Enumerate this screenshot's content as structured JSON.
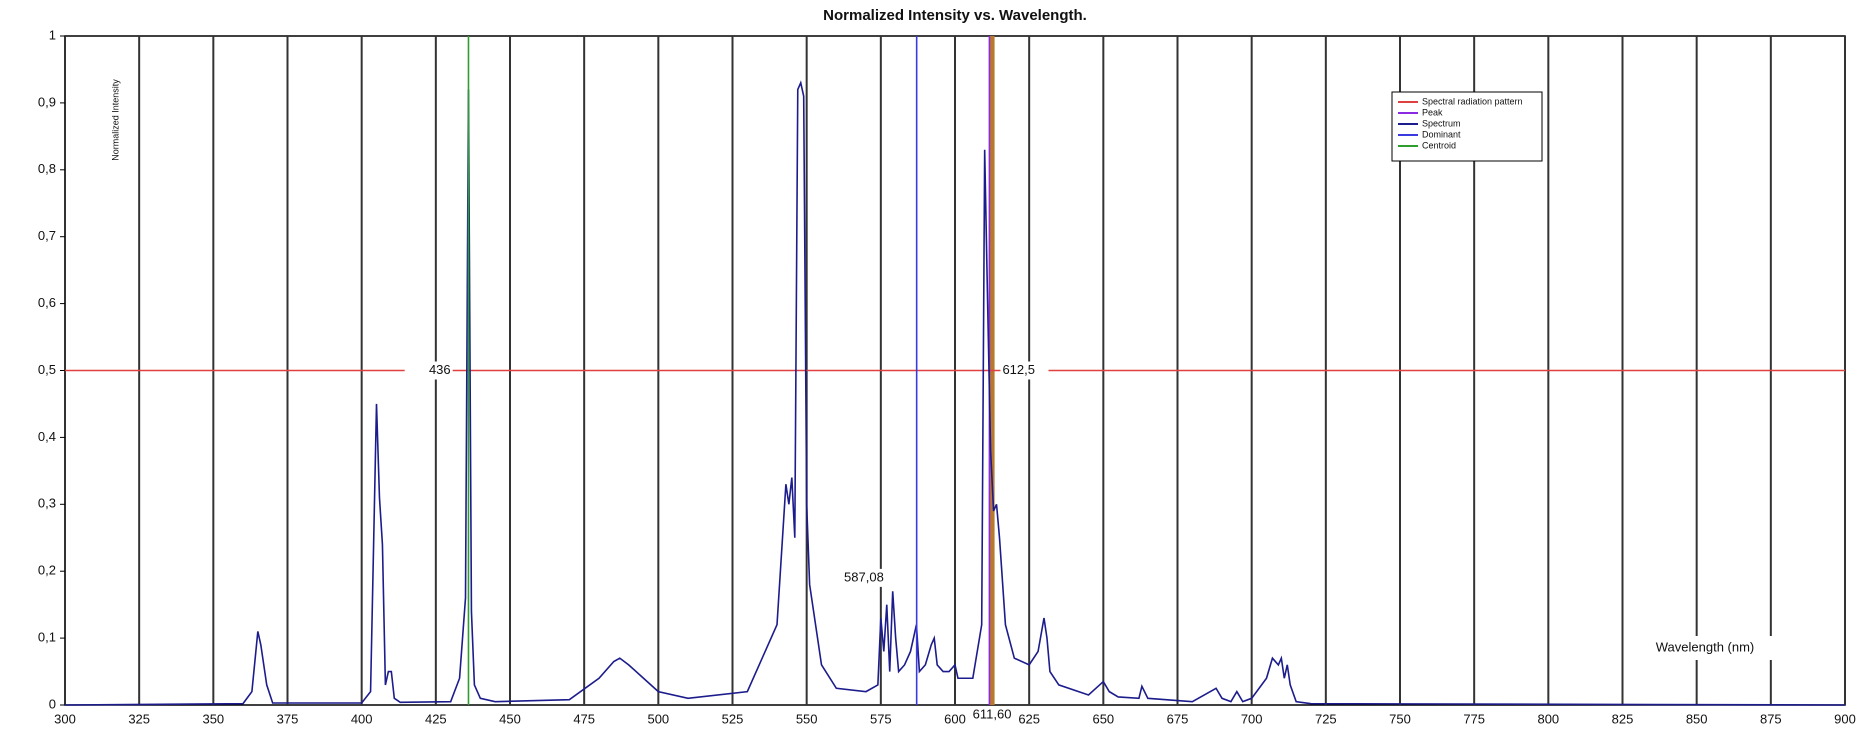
{
  "chart_data": {
    "type": "line",
    "title": "Normalized Intensity vs. Wavelength.",
    "x_label": "Wavelength (nm)",
    "y_label": "Normalized Intensity",
    "xlim": [
      300,
      900
    ],
    "ylim": [
      0,
      1
    ],
    "xticks": [
      300,
      325,
      350,
      375,
      400,
      425,
      450,
      475,
      500,
      525,
      550,
      575,
      600,
      625,
      650,
      675,
      700,
      725,
      750,
      775,
      800,
      825,
      850,
      875,
      900
    ],
    "yticks": [
      0,
      {
        "value": 0.1,
        "label": "0,1"
      },
      {
        "value": 0.2,
        "label": "0,2"
      },
      {
        "value": 0.3,
        "label": "0,3"
      },
      {
        "value": 0.4,
        "label": "0,4"
      },
      {
        "value": 0.5,
        "label": "0,5"
      },
      {
        "value": 0.6,
        "label": "0,6"
      },
      {
        "value": 0.7,
        "label": "0,7"
      },
      {
        "value": 0.8,
        "label": "0,8"
      },
      {
        "value": 0.9,
        "label": "0,9"
      },
      1
    ],
    "grid": true,
    "legend": "upper-right",
    "series": [
      {
        "name": "Spectral radiation pattern",
        "color": "#e04040",
        "x": [
          300,
          900
        ],
        "values": [
          0.5,
          0.5
        ]
      },
      {
        "name": "Peak",
        "color": "#8a2be2",
        "x": [
          611.6,
          611.6
        ],
        "values": [
          0,
          1
        ]
      },
      {
        "name": "Spectrum",
        "color": "#1c1c8c",
        "x": [
          300,
          360,
          363,
          365,
          366,
          368,
          370,
          400,
          403,
          405,
          406,
          407,
          408,
          409,
          410,
          411,
          413,
          430,
          433,
          435,
          436,
          437,
          438,
          440,
          445,
          470,
          480,
          485,
          487,
          490,
          495,
          500,
          510,
          530,
          540,
          543,
          544,
          545,
          546,
          547,
          548,
          549,
          550,
          551,
          553,
          555,
          560,
          570,
          574,
          575,
          576,
          577,
          578,
          579,
          580,
          581,
          583,
          585,
          587,
          588,
          590,
          592,
          593,
          594,
          596,
          598,
          600,
          601,
          603,
          606,
          609,
          610,
          611,
          612,
          613,
          614,
          615,
          617,
          620,
          625,
          628,
          630,
          631,
          632,
          635,
          645,
          650,
          652,
          655,
          662,
          663,
          665,
          680,
          688,
          690,
          693,
          695,
          697,
          700,
          705,
          707,
          709,
          710,
          711,
          712,
          713,
          715,
          720,
          900
        ],
        "values": [
          0,
          0.002,
          0.02,
          0.11,
          0.09,
          0.03,
          0.003,
          0.003,
          0.02,
          0.45,
          0.31,
          0.24,
          0.03,
          0.05,
          0.05,
          0.01,
          0.004,
          0.005,
          0.04,
          0.16,
          0.92,
          0.14,
          0.03,
          0.01,
          0.005,
          0.008,
          0.04,
          0.065,
          0.07,
          0.06,
          0.04,
          0.02,
          0.01,
          0.02,
          0.12,
          0.33,
          0.3,
          0.34,
          0.25,
          0.92,
          0.93,
          0.91,
          0.3,
          0.18,
          0.12,
          0.06,
          0.025,
          0.02,
          0.03,
          0.13,
          0.08,
          0.15,
          0.05,
          0.17,
          0.1,
          0.05,
          0.06,
          0.08,
          0.12,
          0.05,
          0.06,
          0.09,
          0.1,
          0.06,
          0.05,
          0.05,
          0.06,
          0.04,
          0.04,
          0.04,
          0.12,
          0.83,
          0.6,
          0.38,
          0.29,
          0.3,
          0.25,
          0.12,
          0.07,
          0.06,
          0.08,
          0.13,
          0.1,
          0.05,
          0.03,
          0.015,
          0.035,
          0.02,
          0.012,
          0.01,
          0.028,
          0.01,
          0.005,
          0.025,
          0.01,
          0.005,
          0.02,
          0.005,
          0.01,
          0.04,
          0.07,
          0.06,
          0.07,
          0.04,
          0.06,
          0.03,
          0.005,
          0.002,
          0
        ]
      },
      {
        "name": "Dominant",
        "color": "#3a3ae0",
        "x": [
          587.08,
          587.08
        ],
        "values": [
          0,
          1
        ]
      },
      {
        "name": "Centroid",
        "color": "#2e9e2e",
        "x": [
          436,
          436
        ],
        "values": [
          0,
          1
        ]
      }
    ],
    "markers": [
      {
        "color": "#b8782e",
        "x": [
          612.5,
          612.5
        ],
        "values": [
          0,
          1
        ]
      }
    ],
    "annotations": [
      "436",
      "612,5",
      "587,08",
      "611,60"
    ]
  }
}
